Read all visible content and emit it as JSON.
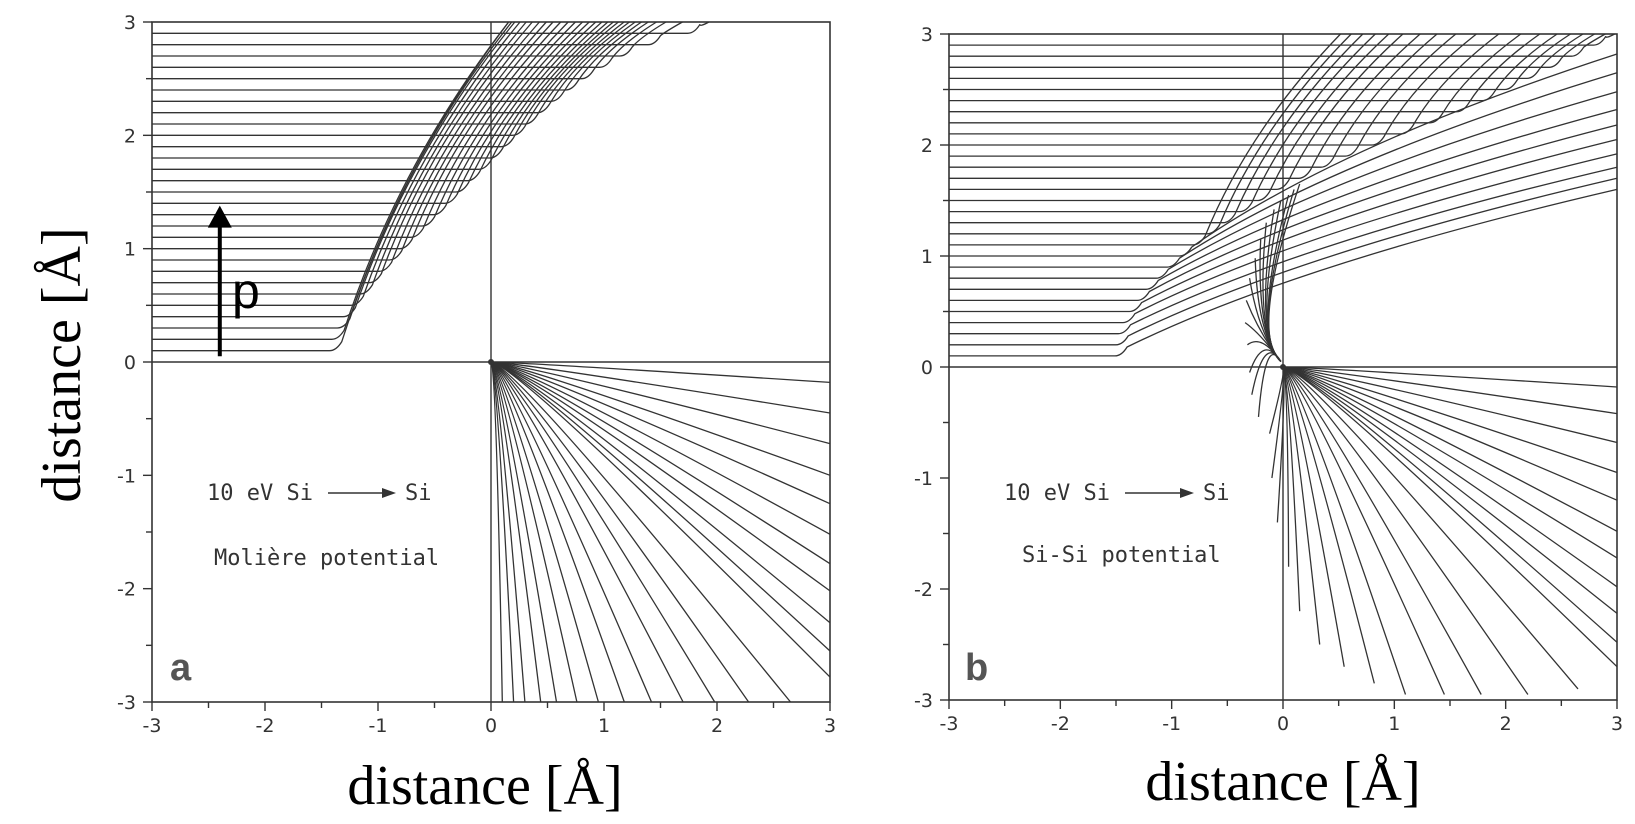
{
  "colors": {
    "ink": "#333333",
    "background": "#ffffff",
    "label": "#000000"
  },
  "panel_a": {
    "letter": "a",
    "beam": "10 eV Si",
    "target": "Si",
    "potential": "Molière potential"
  },
  "panel_b": {
    "letter": "b",
    "beam": "10 eV Si",
    "target": "Si",
    "potential": "Si-Si potential"
  },
  "impact_parameter_label": "p",
  "chart_data": [
    {
      "type": "line",
      "panel": "a",
      "description_printed": [
        "10 eV Si",
        "Si",
        "Molière potential"
      ],
      "xlabel": "distance [Å]",
      "ylabel": "distance [Å]",
      "xlim": [
        -3,
        3
      ],
      "ylim": [
        -3,
        3
      ],
      "x_ticks": [
        "-3",
        "-2",
        "-1",
        "0",
        "1",
        "2",
        "3"
      ],
      "y_ticks": [
        "3",
        "2",
        "1",
        "0",
        "-1",
        "-2",
        "-3"
      ],
      "projectile_trajectories": {
        "impact_parameters_A": [
          0.1,
          0.2,
          0.3,
          0.4,
          0.5,
          0.6,
          0.7,
          0.8,
          0.9,
          1.0,
          1.1,
          1.2,
          1.3,
          1.4,
          1.5,
          1.6,
          1.7,
          1.8,
          1.9,
          2.0,
          2.1,
          2.2,
          2.3,
          2.4,
          2.5,
          2.6,
          2.7,
          2.8,
          2.9
        ],
        "turning_x_A": [
          -1.37,
          -1.35,
          -1.3,
          -1.25,
          -1.18,
          -1.1,
          -1.02,
          -0.93,
          -0.84,
          -0.75,
          -0.65,
          -0.55,
          -0.45,
          -0.35,
          -0.25,
          -0.15,
          -0.05,
          0.05,
          0.15,
          0.25,
          0.36,
          0.47,
          0.59,
          0.72,
          0.86,
          1.02,
          1.2,
          1.45,
          1.8
        ],
        "exit_y_at_x3_A": [
          3.0,
          3.0,
          3.0,
          3.0,
          3.0,
          3.0,
          3.0,
          3.0,
          3.0,
          3.0,
          3.0,
          3.0,
          3.0,
          3.0,
          3.0,
          3.0,
          3.0,
          3.0,
          3.0,
          3.0,
          3.0,
          3.0,
          3.0,
          3.0,
          3.0,
          3.0,
          3.0,
          3.0,
          3.0
        ]
      },
      "recoil_trajectories": {
        "end_points_A": [
          [
            3.0,
            -0.18
          ],
          [
            3.0,
            -0.45
          ],
          [
            3.0,
            -0.72
          ],
          [
            3.0,
            -1.0
          ],
          [
            3.0,
            -1.25
          ],
          [
            3.0,
            -1.52
          ],
          [
            3.0,
            -1.78
          ],
          [
            3.0,
            -2.02
          ],
          [
            3.0,
            -2.3
          ],
          [
            3.0,
            -2.55
          ],
          [
            3.0,
            -2.78
          ],
          [
            2.65,
            -3.0
          ],
          [
            2.28,
            -3.0
          ],
          [
            1.98,
            -3.0
          ],
          [
            1.7,
            -3.0
          ],
          [
            1.42,
            -3.0
          ],
          [
            1.18,
            -3.0
          ],
          [
            0.95,
            -3.0
          ],
          [
            0.76,
            -3.0
          ],
          [
            0.58,
            -3.0
          ],
          [
            0.44,
            -3.0
          ],
          [
            0.3,
            -3.0
          ],
          [
            0.2,
            -3.0
          ],
          [
            0.1,
            -3.0
          ]
        ]
      },
      "arrow": {
        "label": "p",
        "x": -2.4,
        "y_from": 0.05,
        "y_to": 1.38
      }
    },
    {
      "type": "line",
      "panel": "b",
      "description_printed": [
        "10 eV Si",
        "Si",
        "Si-Si potential"
      ],
      "xlabel": "distance [Å]",
      "ylabel": "",
      "xlim": [
        -3,
        3
      ],
      "ylim": [
        -3,
        3
      ],
      "x_ticks": [
        "-3",
        "-2",
        "-1",
        "0",
        "1",
        "2",
        "3"
      ],
      "y_ticks": [
        "3",
        "2",
        "1",
        "0",
        "-1",
        "-2",
        "-3"
      ],
      "projectile_trajectories": {
        "impact_parameters_A": [
          0.1,
          0.2,
          0.3,
          0.4,
          0.5,
          0.6,
          0.7,
          0.8,
          0.9,
          1.0,
          1.1,
          1.2,
          1.3,
          1.4,
          1.5,
          1.6,
          1.7,
          1.8,
          1.9,
          2.0,
          2.1,
          2.2,
          2.3,
          2.4,
          2.5,
          2.6,
          2.7,
          2.8,
          2.9
        ],
        "turning_x_A": [
          -1.45,
          -1.44,
          -1.42,
          -1.38,
          -1.32,
          -1.25,
          -1.17,
          -1.08,
          -0.98,
          -0.87,
          -0.75,
          -0.62,
          -0.48,
          -0.33,
          -0.17,
          0.0,
          0.2,
          0.4,
          0.62,
          0.86,
          1.12,
          1.38,
          1.62,
          1.85,
          2.05,
          2.25,
          2.45,
          2.65,
          2.85
        ],
        "exit_y_at_x3_A": [
          1.6,
          1.7,
          1.8,
          1.92,
          2.05,
          2.18,
          2.32,
          2.48,
          2.65,
          2.82,
          3.0,
          3.0,
          3.0,
          3.0,
          3.0,
          3.0,
          3.0,
          3.0,
          3.0,
          3.0,
          3.0,
          3.0,
          3.0,
          3.0,
          3.0,
          3.0,
          3.0,
          3.0,
          3.0
        ]
      },
      "recoil_trajectories": {
        "end_points_A": [
          [
            3.0,
            -0.18
          ],
          [
            3.0,
            -0.42
          ],
          [
            3.0,
            -0.68
          ],
          [
            3.0,
            -0.95
          ],
          [
            3.0,
            -1.2
          ],
          [
            3.0,
            -1.48
          ],
          [
            3.0,
            -1.72
          ],
          [
            3.0,
            -1.98
          ],
          [
            3.0,
            -2.22
          ],
          [
            3.0,
            -2.48
          ],
          [
            3.0,
            -2.7
          ],
          [
            2.65,
            -2.9
          ],
          [
            2.2,
            -2.95
          ],
          [
            1.78,
            -2.95
          ],
          [
            1.45,
            -2.95
          ],
          [
            1.1,
            -2.95
          ],
          [
            0.82,
            -2.85
          ],
          [
            0.55,
            -2.7
          ],
          [
            0.33,
            -2.5
          ],
          [
            0.15,
            -2.2
          ],
          [
            0.05,
            -1.8
          ],
          [
            -0.05,
            -1.4
          ],
          [
            -0.1,
            -1.0
          ],
          [
            -0.12,
            -0.6
          ]
        ]
      },
      "backscatter_trajectories": {
        "end_points_A": [
          [
            0.15,
            1.65
          ],
          [
            0.1,
            1.6
          ],
          [
            0.05,
            1.55
          ],
          [
            -0.02,
            1.5
          ],
          [
            -0.08,
            1.42
          ],
          [
            -0.15,
            1.3
          ],
          [
            -0.2,
            1.15
          ],
          [
            -0.25,
            0.98
          ],
          [
            -0.3,
            0.8
          ],
          [
            -0.33,
            0.6
          ],
          [
            -0.34,
            0.4
          ],
          [
            -0.32,
            0.2
          ],
          [
            -0.3,
            -0.05
          ],
          [
            -0.28,
            -0.25
          ],
          [
            -0.22,
            -0.45
          ]
        ]
      }
    }
  ]
}
